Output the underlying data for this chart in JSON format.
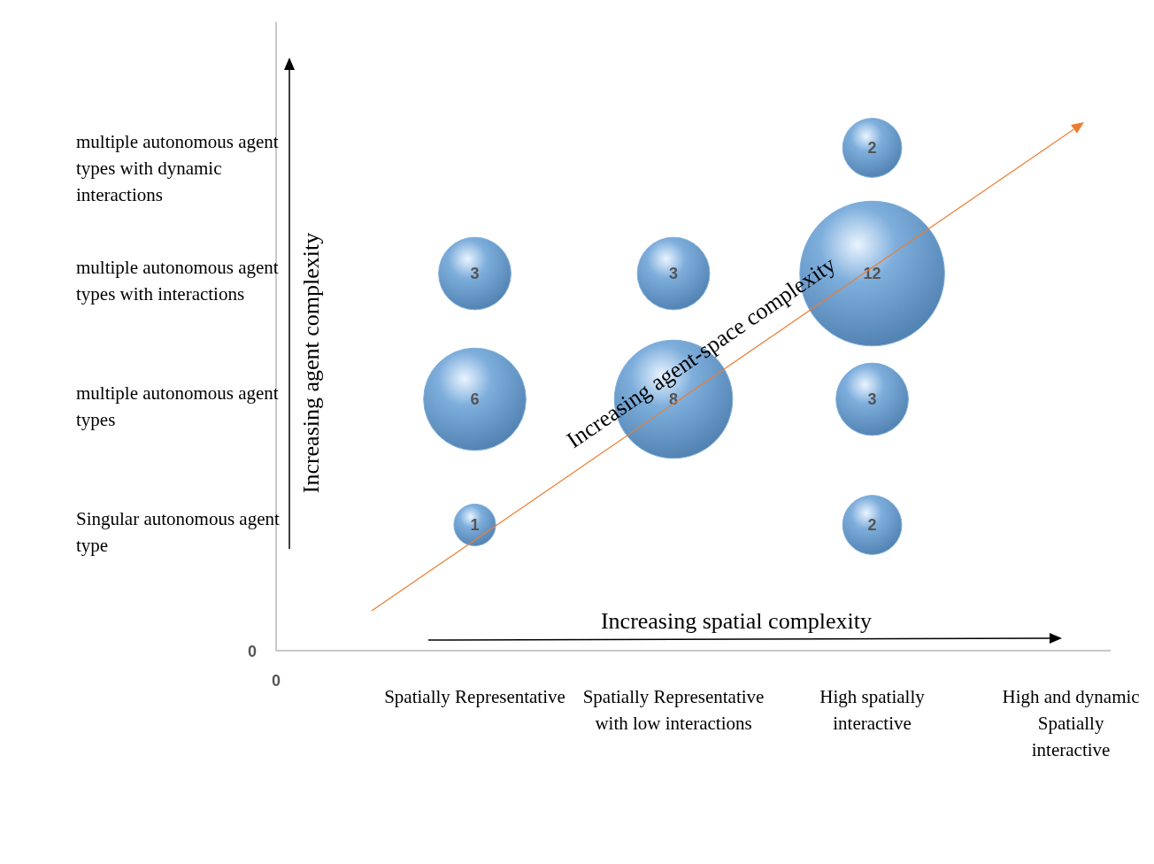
{
  "chart_data": {
    "type": "heatmap",
    "categories": [
      "Spatially Representative",
      "Spatially Representative with low interactions",
      "High spatially interactive",
      "High and dynamic Spatially interactive"
    ],
    "y_categories": [
      "multiple autonomous agent types with dynamic interactions",
      "multiple autonomous agent types with interactions",
      "multiple autonomous agent types",
      "Singular autonomous agent type"
    ],
    "cells": [
      [
        null,
        null,
        2,
        null
      ],
      [
        3,
        3,
        12,
        null
      ],
      [
        6,
        8,
        3,
        null
      ],
      [
        1,
        null,
        2,
        null
      ]
    ],
    "color": "#7eaedc",
    "data_labels": true,
    "annotations": [
      "Increasing agent complexity",
      "Increasing spatial complexity",
      "Increasing agent-space complexity",
      "0",
      "0"
    ]
  }
}
